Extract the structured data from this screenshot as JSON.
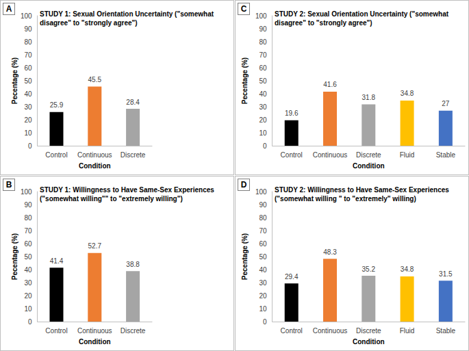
{
  "chart_data": [
    {
      "type": "bar",
      "panel": "A",
      "title": "STUDY 1: Sexual Orientation Uncertainty (\"somewhat disagree\" to \"strongly agree\")",
      "x_label": "Condition",
      "y_label": "Pecentage (%)",
      "categories": [
        "Control",
        "Continuous",
        "Discrete"
      ],
      "values": [
        25.9,
        45.5,
        28.4
      ],
      "colors": [
        "#000000",
        "#ed7d31",
        "#a5a5a5"
      ],
      "ylim": [
        0,
        100
      ],
      "yticks": [
        0,
        10,
        20,
        30,
        40,
        50,
        60,
        70,
        80,
        90,
        100
      ],
      "grid": false,
      "data_labels": true
    },
    {
      "type": "bar",
      "panel": "B",
      "title": "STUDY 1: Willingness to Have Same-Sex Experiences (\"somewhat willing\"\" to \"extremely willing\")",
      "x_label": "Condition",
      "y_label": "Pecentage (%)",
      "categories": [
        "Control",
        "Continuous",
        "Discrete"
      ],
      "values": [
        41.4,
        52.7,
        38.8
      ],
      "colors": [
        "#000000",
        "#ed7d31",
        "#a5a5a5"
      ],
      "ylim": [
        0,
        100
      ],
      "yticks": [
        0,
        10,
        20,
        30,
        40,
        50,
        60,
        70,
        80,
        90,
        100
      ],
      "grid": false,
      "data_labels": true
    },
    {
      "type": "bar",
      "panel": "C",
      "title": "STUDY 2: Sexual Orientation Uncertainty (\"somewhat disagree\" to \"strongly agree\")",
      "x_label": "Condition",
      "y_label": "Pecentage (%)",
      "categories": [
        "Control",
        "Continuous",
        "Discrete",
        "Fluid",
        "Stable"
      ],
      "values": [
        19.6,
        41.6,
        31.8,
        34.8,
        27
      ],
      "colors": [
        "#000000",
        "#ed7d31",
        "#a5a5a5",
        "#ffc000",
        "#4472c4"
      ],
      "ylim": [
        0,
        100
      ],
      "yticks": [
        0,
        10,
        20,
        30,
        40,
        50,
        60,
        70,
        80,
        90,
        100
      ],
      "grid": false,
      "data_labels": true
    },
    {
      "type": "bar",
      "panel": "D",
      "title": "STUDY 2: Willingness to Have Same-Sex Experiences (\"somewhat willing \" to \"extremely\" willing)",
      "x_label": "Condition",
      "y_label": "Pecentage (%)",
      "categories": [
        "Control",
        "Continuous",
        "Discrete",
        "Fluid",
        "Stable"
      ],
      "values": [
        29.4,
        48.3,
        35.2,
        34.8,
        31.5
      ],
      "colors": [
        "#000000",
        "#ed7d31",
        "#a5a5a5",
        "#ffc000",
        "#4472c4"
      ],
      "ylim": [
        0,
        100
      ],
      "yticks": [
        0,
        10,
        20,
        30,
        40,
        50,
        60,
        70,
        80,
        90,
        100
      ],
      "grid": false,
      "data_labels": true
    }
  ]
}
